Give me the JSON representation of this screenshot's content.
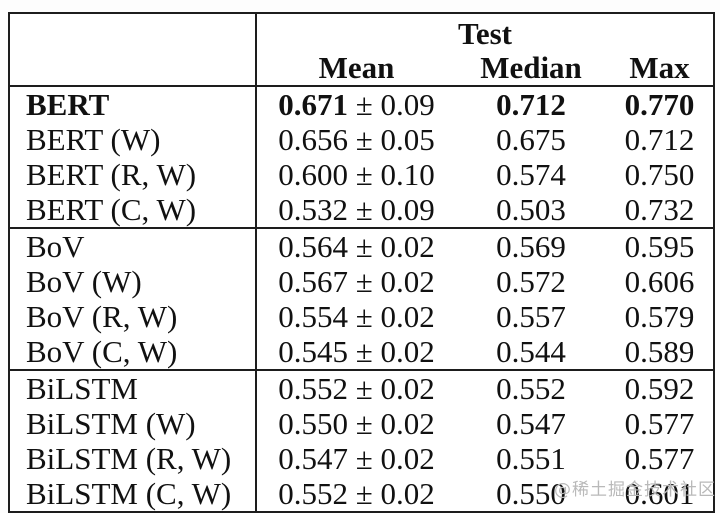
{
  "table": {
    "header": {
      "group_label": "Test",
      "columns": [
        "Mean",
        "Median",
        "Max"
      ]
    },
    "rows": [
      {
        "model": "BERT",
        "mean": "0.671",
        "pm": "± 0.09",
        "median": "0.712",
        "max": "0.770"
      },
      {
        "model": "BERT (W)",
        "mean": "0.656",
        "pm": "± 0.05",
        "median": "0.675",
        "max": "0.712"
      },
      {
        "model": "BERT (R, W)",
        "mean": "0.600",
        "pm": "± 0.10",
        "median": "0.574",
        "max": "0.750"
      },
      {
        "model": "BERT (C, W)",
        "mean": "0.532",
        "pm": "± 0.09",
        "median": "0.503",
        "max": "0.732"
      },
      {
        "model": "BoV",
        "mean": "0.564",
        "pm": "± 0.02",
        "median": "0.569",
        "max": "0.595"
      },
      {
        "model": "BoV (W)",
        "mean": "0.567",
        "pm": "± 0.02",
        "median": "0.572",
        "max": "0.606"
      },
      {
        "model": "BoV (R, W)",
        "mean": "0.554",
        "pm": "± 0.02",
        "median": "0.557",
        "max": "0.579"
      },
      {
        "model": "BoV (C, W)",
        "mean": "0.545",
        "pm": "± 0.02",
        "median": "0.544",
        "max": "0.589"
      },
      {
        "model": "BiLSTM",
        "mean": "0.552",
        "pm": "± 0.02",
        "median": "0.552",
        "max": "0.592"
      },
      {
        "model": "BiLSTM (W)",
        "mean": "0.550",
        "pm": "± 0.02",
        "median": "0.547",
        "max": "0.577"
      },
      {
        "model": "BiLSTM (R, W)",
        "mean": "0.547",
        "pm": "± 0.02",
        "median": "0.551",
        "max": "0.577"
      },
      {
        "model": "BiLSTM (C, W)",
        "mean": "0.552",
        "pm": "± 0.02",
        "median": "0.550",
        "max": "0.601"
      }
    ]
  },
  "watermark": {
    "text": "@稀土掘金技术社区"
  },
  "colors": {
    "text": "#111111",
    "border": "#1d1d1d",
    "background": "#fdfdfd",
    "watermark": "#b9b9b9"
  }
}
